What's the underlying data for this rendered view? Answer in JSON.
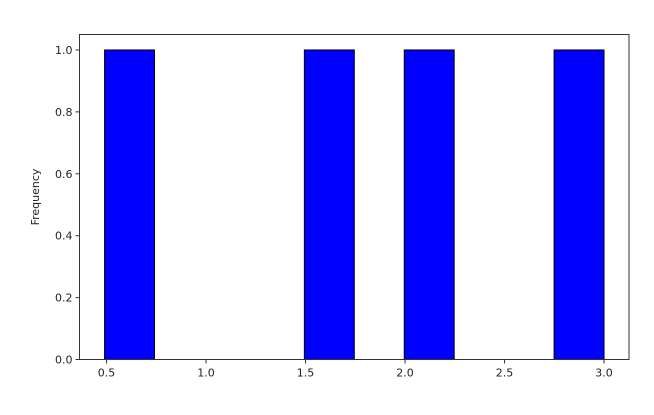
{
  "chart_data": {
    "type": "bar",
    "subtype": "histogram",
    "title": "",
    "xlabel": "",
    "ylabel": "Frequency",
    "bin_edges": [
      0.49,
      0.741,
      0.992,
      1.243,
      1.494,
      1.745,
      1.996,
      2.247,
      2.498,
      2.749,
      3.0
    ],
    "counts": [
      1,
      0,
      0,
      0,
      1,
      0,
      1,
      0,
      0,
      1
    ],
    "xlim": [
      0.364,
      3.1255
    ],
    "ylim": [
      0,
      1.05
    ],
    "xticks": [
      "0.5",
      "1.0",
      "1.5",
      "2.0",
      "2.5",
      "3.0"
    ],
    "yticks": [
      "0.0",
      "0.2",
      "0.4",
      "0.6",
      "0.8",
      "1.0"
    ],
    "bar_color": "#0000ff",
    "edge_color": "#000000",
    "grid": false
  }
}
